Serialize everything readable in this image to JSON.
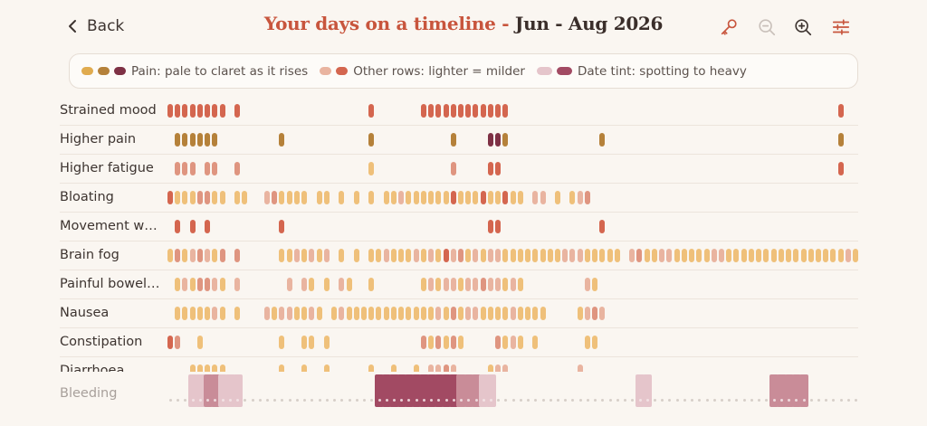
{
  "header": {
    "back_label": "Back",
    "title_lead": "Your days on a timeline -",
    "title_range": "Jun - Aug 2026"
  },
  "toolbar": {
    "icons": [
      "key-icon",
      "zoom-out-icon",
      "zoom-in-icon",
      "sliders-icon"
    ]
  },
  "legend": {
    "pain_label": "Pain: pale to claret as it rises",
    "other_label": "Other rows: lighter = milder",
    "tint_label": "Date tint: spotting to heavy"
  },
  "colors": {
    "accent": "#c8553d",
    "pain_scale": [
      "#e0ab4f",
      "#b5813a",
      "#7e3145"
    ],
    "other_scale": [
      "#efc07a",
      "#e9b4a0",
      "#df9580",
      "#d4664f"
    ],
    "tint_scale": [
      "#e5c5cb",
      "#c98c98",
      "#a24a63"
    ],
    "no_data_dot": "#d7cfc9"
  },
  "timeline": {
    "days": 93,
    "rows": [
      {
        "label": "Strained mood",
        "marks": [
          [
            0,
            3
          ],
          [
            1,
            3
          ],
          [
            2,
            3
          ],
          [
            3,
            3
          ],
          [
            4,
            3
          ],
          [
            5,
            3
          ],
          [
            6,
            3
          ],
          [
            7,
            3
          ],
          [
            9,
            3
          ],
          [
            27,
            3
          ],
          [
            34,
            3
          ],
          [
            35,
            3
          ],
          [
            36,
            3
          ],
          [
            37,
            3
          ],
          [
            38,
            3
          ],
          [
            39,
            3
          ],
          [
            40,
            3
          ],
          [
            41,
            3
          ],
          [
            42,
            3
          ],
          [
            43,
            3
          ],
          [
            44,
            3
          ],
          [
            45,
            3
          ],
          [
            90,
            3
          ]
        ]
      },
      {
        "label": "Higher pain",
        "marks": [
          [
            1,
            1
          ],
          [
            2,
            1
          ],
          [
            3,
            1
          ],
          [
            4,
            1
          ],
          [
            5,
            1
          ],
          [
            6,
            1
          ],
          [
            15,
            1
          ],
          [
            27,
            1
          ],
          [
            38,
            1
          ],
          [
            43,
            2
          ],
          [
            44,
            2
          ],
          [
            45,
            1
          ],
          [
            58,
            1
          ],
          [
            90,
            1
          ]
        ]
      },
      {
        "label": "Higher fatigue",
        "marks": [
          [
            1,
            2
          ],
          [
            2,
            2
          ],
          [
            3,
            2
          ],
          [
            5,
            2
          ],
          [
            6,
            2
          ],
          [
            9,
            2
          ],
          [
            27,
            0
          ],
          [
            38,
            2
          ],
          [
            43,
            3
          ],
          [
            44,
            3
          ],
          [
            90,
            3
          ]
        ]
      },
      {
        "label": "Bloating",
        "marks": [
          [
            0,
            3
          ],
          [
            1,
            0
          ],
          [
            2,
            0
          ],
          [
            3,
            0
          ],
          [
            4,
            2
          ],
          [
            5,
            2
          ],
          [
            6,
            0
          ],
          [
            7,
            0
          ],
          [
            9,
            0
          ],
          [
            10,
            0
          ],
          [
            13,
            1
          ],
          [
            14,
            2
          ],
          [
            15,
            0
          ],
          [
            16,
            0
          ],
          [
            17,
            0
          ],
          [
            18,
            0
          ],
          [
            20,
            0
          ],
          [
            21,
            0
          ],
          [
            23,
            0
          ],
          [
            25,
            0
          ],
          [
            27,
            0
          ],
          [
            29,
            0
          ],
          [
            30,
            0
          ],
          [
            31,
            1
          ],
          [
            32,
            0
          ],
          [
            33,
            0
          ],
          [
            34,
            0
          ],
          [
            35,
            0
          ],
          [
            36,
            0
          ],
          [
            37,
            0
          ],
          [
            38,
            3
          ],
          [
            39,
            0
          ],
          [
            40,
            0
          ],
          [
            41,
            0
          ],
          [
            42,
            3
          ],
          [
            43,
            0
          ],
          [
            44,
            0
          ],
          [
            45,
            3
          ],
          [
            46,
            0
          ],
          [
            47,
            0
          ],
          [
            49,
            1
          ],
          [
            50,
            1
          ],
          [
            52,
            0
          ],
          [
            54,
            0
          ],
          [
            55,
            1
          ],
          [
            56,
            2
          ]
        ]
      },
      {
        "label": "Movement worse",
        "marks": [
          [
            1,
            3
          ],
          [
            3,
            3
          ],
          [
            5,
            3
          ],
          [
            15,
            3
          ],
          [
            43,
            3
          ],
          [
            44,
            3
          ],
          [
            58,
            3
          ]
        ]
      },
      {
        "label": "Brain fog",
        "marks": [
          [
            0,
            0
          ],
          [
            1,
            2
          ],
          [
            2,
            0
          ],
          [
            3,
            1
          ],
          [
            4,
            2
          ],
          [
            5,
            1
          ],
          [
            6,
            0
          ],
          [
            7,
            2
          ],
          [
            9,
            2
          ],
          [
            15,
            0
          ],
          [
            16,
            0
          ],
          [
            17,
            1
          ],
          [
            18,
            0
          ],
          [
            19,
            1
          ],
          [
            20,
            0
          ],
          [
            21,
            1
          ],
          [
            23,
            0
          ],
          [
            25,
            0
          ],
          [
            27,
            0
          ],
          [
            28,
            0
          ],
          [
            29,
            1
          ],
          [
            30,
            0
          ],
          [
            31,
            0
          ],
          [
            32,
            0
          ],
          [
            33,
            1
          ],
          [
            34,
            0
          ],
          [
            35,
            1
          ],
          [
            36,
            0
          ],
          [
            37,
            3
          ],
          [
            38,
            1
          ],
          [
            39,
            2
          ],
          [
            40,
            0
          ],
          [
            41,
            1
          ],
          [
            42,
            0
          ],
          [
            43,
            1
          ],
          [
            44,
            1
          ],
          [
            45,
            0
          ],
          [
            46,
            0
          ],
          [
            47,
            0
          ],
          [
            48,
            0
          ],
          [
            49,
            0
          ],
          [
            50,
            0
          ],
          [
            51,
            0
          ],
          [
            52,
            0
          ],
          [
            53,
            1
          ],
          [
            54,
            1
          ],
          [
            55,
            1
          ],
          [
            56,
            0
          ],
          [
            57,
            0
          ],
          [
            58,
            0
          ],
          [
            59,
            0
          ],
          [
            60,
            0
          ],
          [
            62,
            1
          ],
          [
            63,
            2
          ],
          [
            64,
            0
          ],
          [
            65,
            0
          ],
          [
            66,
            1
          ],
          [
            67,
            1
          ],
          [
            68,
            0
          ],
          [
            69,
            0
          ],
          [
            70,
            0
          ],
          [
            71,
            0
          ],
          [
            72,
            0
          ],
          [
            73,
            1
          ],
          [
            74,
            1
          ],
          [
            75,
            0
          ],
          [
            76,
            0
          ],
          [
            77,
            0
          ],
          [
            78,
            0
          ],
          [
            79,
            0
          ],
          [
            80,
            0
          ],
          [
            81,
            0
          ],
          [
            82,
            0
          ],
          [
            83,
            0
          ],
          [
            84,
            0
          ],
          [
            85,
            0
          ],
          [
            86,
            0
          ],
          [
            87,
            0
          ],
          [
            88,
            0
          ],
          [
            89,
            0
          ],
          [
            90,
            0
          ],
          [
            91,
            1
          ],
          [
            92,
            0
          ]
        ]
      },
      {
        "label": "Painful bowel movements",
        "marks": [
          [
            1,
            0
          ],
          [
            2,
            1
          ],
          [
            3,
            0
          ],
          [
            4,
            2
          ],
          [
            5,
            2
          ],
          [
            6,
            1
          ],
          [
            7,
            0
          ],
          [
            9,
            1
          ],
          [
            16,
            1
          ],
          [
            18,
            1
          ],
          [
            19,
            0
          ],
          [
            21,
            0
          ],
          [
            23,
            1
          ],
          [
            24,
            0
          ],
          [
            27,
            0
          ],
          [
            34,
            0
          ],
          [
            35,
            1
          ],
          [
            36,
            0
          ],
          [
            37,
            1
          ],
          [
            38,
            1
          ],
          [
            39,
            0
          ],
          [
            40,
            1
          ],
          [
            41,
            1
          ],
          [
            42,
            2
          ],
          [
            43,
            1
          ],
          [
            44,
            1
          ],
          [
            45,
            0
          ],
          [
            46,
            1
          ],
          [
            47,
            0
          ],
          [
            56,
            1
          ],
          [
            57,
            0
          ]
        ]
      },
      {
        "label": "Nausea",
        "marks": [
          [
            1,
            0
          ],
          [
            2,
            0
          ],
          [
            3,
            0
          ],
          [
            4,
            0
          ],
          [
            5,
            0
          ],
          [
            6,
            1
          ],
          [
            7,
            0
          ],
          [
            9,
            0
          ],
          [
            13,
            1
          ],
          [
            14,
            0
          ],
          [
            15,
            1
          ],
          [
            16,
            1
          ],
          [
            17,
            0
          ],
          [
            18,
            0
          ],
          [
            19,
            1
          ],
          [
            20,
            0
          ],
          [
            22,
            0
          ],
          [
            23,
            1
          ],
          [
            24,
            0
          ],
          [
            25,
            0
          ],
          [
            26,
            0
          ],
          [
            27,
            0
          ],
          [
            28,
            0
          ],
          [
            29,
            0
          ],
          [
            30,
            0
          ],
          [
            31,
            0
          ],
          [
            32,
            0
          ],
          [
            33,
            0
          ],
          [
            34,
            0
          ],
          [
            35,
            0
          ],
          [
            36,
            1
          ],
          [
            37,
            0
          ],
          [
            38,
            2
          ],
          [
            39,
            0
          ],
          [
            40,
            1
          ],
          [
            41,
            1
          ],
          [
            42,
            0
          ],
          [
            43,
            0
          ],
          [
            44,
            0
          ],
          [
            45,
            0
          ],
          [
            46,
            1
          ],
          [
            47,
            0
          ],
          [
            48,
            0
          ],
          [
            49,
            0
          ],
          [
            50,
            0
          ],
          [
            55,
            0
          ],
          [
            56,
            1
          ],
          [
            57,
            2
          ],
          [
            58,
            1
          ]
        ]
      },
      {
        "label": "Constipation",
        "marks": [
          [
            0,
            3
          ],
          [
            1,
            2
          ],
          [
            4,
            0
          ],
          [
            15,
            0
          ],
          [
            18,
            0
          ],
          [
            19,
            0
          ],
          [
            21,
            0
          ],
          [
            34,
            2
          ],
          [
            35,
            0
          ],
          [
            36,
            2
          ],
          [
            37,
            0
          ],
          [
            38,
            2
          ],
          [
            39,
            0
          ],
          [
            44,
            2
          ],
          [
            45,
            0
          ],
          [
            46,
            1
          ],
          [
            47,
            0
          ],
          [
            49,
            0
          ],
          [
            56,
            0
          ],
          [
            57,
            0
          ]
        ]
      },
      {
        "label": "Diarrhoea",
        "marks": [
          [
            3,
            0
          ],
          [
            4,
            0
          ],
          [
            5,
            0
          ],
          [
            6,
            0
          ],
          [
            7,
            0
          ],
          [
            15,
            0
          ],
          [
            18,
            0
          ],
          [
            21,
            0
          ],
          [
            27,
            0
          ],
          [
            30,
            0
          ],
          [
            33,
            0
          ],
          [
            35,
            1
          ],
          [
            36,
            1
          ],
          [
            37,
            2
          ],
          [
            38,
            1
          ],
          [
            43,
            0
          ],
          [
            44,
            1
          ],
          [
            45,
            1
          ],
          [
            55,
            1
          ]
        ]
      }
    ],
    "bleeding": {
      "label": "Bleeding",
      "days": [
        [
          3,
          1
        ],
        [
          4,
          1
        ],
        [
          5,
          2
        ],
        [
          6,
          2
        ],
        [
          7,
          1
        ],
        [
          8,
          1
        ],
        [
          9,
          1
        ],
        [
          28,
          3
        ],
        [
          29,
          3
        ],
        [
          30,
          3
        ],
        [
          31,
          3
        ],
        [
          32,
          3
        ],
        [
          33,
          3
        ],
        [
          34,
          3
        ],
        [
          35,
          3
        ],
        [
          36,
          3
        ],
        [
          37,
          3
        ],
        [
          38,
          3
        ],
        [
          39,
          2
        ],
        [
          40,
          2
        ],
        [
          41,
          2
        ],
        [
          42,
          1
        ],
        [
          43,
          1
        ],
        [
          63,
          1
        ],
        [
          64,
          1
        ],
        [
          81,
          2
        ],
        [
          82,
          2
        ],
        [
          83,
          2
        ],
        [
          84,
          2
        ],
        [
          85,
          2
        ]
      ]
    }
  }
}
